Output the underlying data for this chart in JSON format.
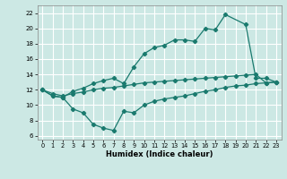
{
  "xlabel": "Humidex (Indice chaleur)",
  "bg_color": "#cce8e4",
  "grid_color": "#ffffff",
  "line_color": "#1a7a6e",
  "xlim": [
    -0.5,
    23.5
  ],
  "ylim": [
    5.5,
    23.0
  ],
  "xticks": [
    0,
    1,
    2,
    3,
    4,
    5,
    6,
    7,
    8,
    9,
    10,
    11,
    12,
    13,
    14,
    15,
    16,
    17,
    18,
    19,
    20,
    21,
    22,
    23
  ],
  "yticks": [
    6,
    8,
    10,
    12,
    14,
    16,
    18,
    20,
    22
  ],
  "line1_x": [
    0,
    1,
    2,
    3,
    4,
    5,
    6,
    7,
    8,
    9,
    10,
    11,
    12,
    13,
    14,
    15,
    16,
    17,
    18,
    20,
    21,
    22,
    23
  ],
  "line1_y": [
    12,
    11.2,
    11.0,
    11.8,
    12.2,
    12.8,
    13.2,
    13.5,
    12.8,
    15.0,
    16.7,
    17.5,
    17.8,
    18.5,
    18.5,
    18.3,
    20.0,
    19.8,
    21.8,
    20.5,
    13.5,
    13.5,
    13.0
  ],
  "line2_x": [
    0,
    1,
    2,
    3,
    4,
    5,
    6,
    7,
    8,
    9,
    10,
    11,
    12,
    13,
    14,
    15,
    16,
    17,
    18,
    19,
    20,
    21,
    22,
    23
  ],
  "line2_y": [
    12.0,
    11.5,
    11.2,
    11.5,
    11.7,
    12.0,
    12.2,
    12.3,
    12.5,
    12.7,
    12.9,
    13.0,
    13.1,
    13.2,
    13.3,
    13.4,
    13.5,
    13.6,
    13.7,
    13.8,
    13.9,
    14.0,
    12.9,
    13.0
  ],
  "line3_x": [
    0,
    1,
    2,
    3,
    4,
    5,
    6,
    7,
    8,
    9,
    10,
    11,
    12,
    13,
    14,
    15,
    16,
    17,
    18,
    19,
    20,
    21,
    22,
    23
  ],
  "line3_y": [
    12.0,
    11.2,
    11.0,
    9.5,
    9.0,
    7.5,
    7.0,
    6.7,
    9.2,
    9.0,
    10.0,
    10.5,
    10.8,
    11.0,
    11.2,
    11.5,
    11.8,
    12.0,
    12.3,
    12.5,
    12.6,
    12.8,
    12.9,
    13.0
  ]
}
